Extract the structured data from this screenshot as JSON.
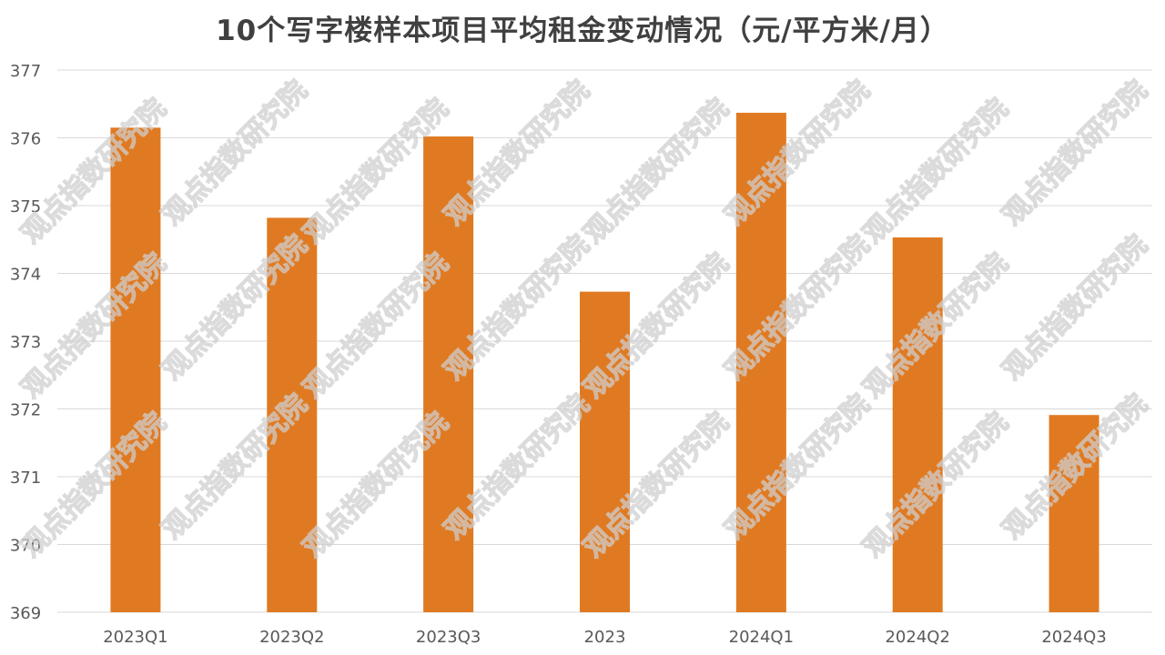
{
  "title": "10个写字楼样本项目平均租金变动情况（元/平方米/月）",
  "watermark": "观点指数研究院",
  "colors": {
    "bar": "#E07A22",
    "grid": "#d9d9d9",
    "text": "#595959",
    "title": "#404040"
  },
  "chart_data": {
    "type": "bar",
    "title": "10个写字楼样本项目平均租金变动情况（元/平方米/月）",
    "categories": [
      "2023Q1",
      "2023Q2",
      "2023Q3",
      "2023",
      "2024Q1",
      "2024Q2",
      "2024Q3"
    ],
    "values": [
      376.15,
      374.82,
      376.02,
      373.73,
      376.37,
      374.53,
      371.91
    ],
    "xlabel": "",
    "ylabel": "",
    "ylim": [
      369,
      377
    ],
    "yticks": [
      369,
      370,
      371,
      372,
      373,
      374,
      375,
      376,
      377
    ],
    "grid": true,
    "legend": "none"
  }
}
